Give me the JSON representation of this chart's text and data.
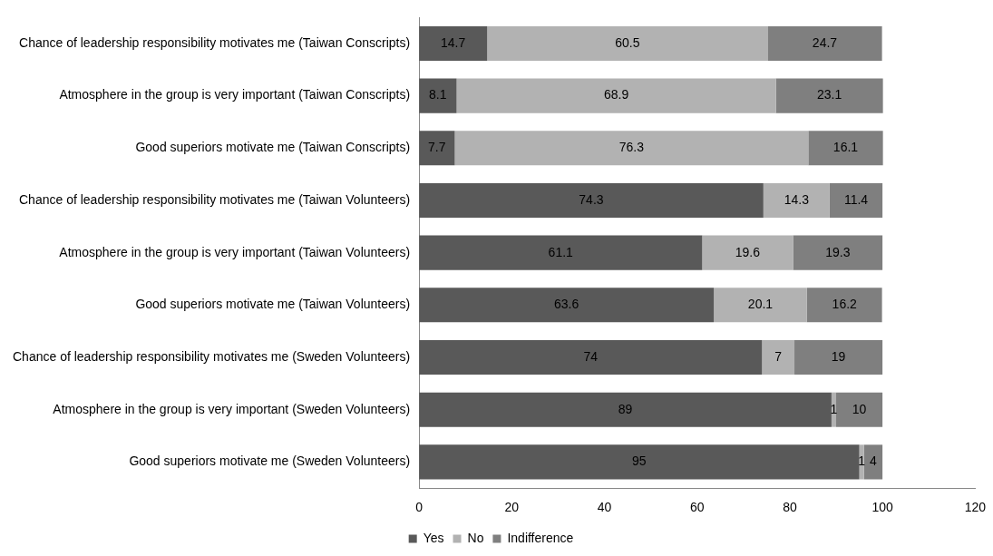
{
  "chart_data": {
    "type": "bar",
    "orientation": "horizontal",
    "stacked": true,
    "categories": [
      "Chance of leadership responsibility motivates me (Taiwan Conscripts)",
      "Atmosphere in the group is very important (Taiwan Conscripts)",
      "Good superiors motivate me (Taiwan Conscripts)",
      "Chance of leadership responsibility motivates me (Taiwan Volunteers)",
      "Atmosphere in the group is very important (Taiwan Volunteers)",
      "Good superiors motivate me (Taiwan Volunteers)",
      "Chance of leadership responsibility motivates me (Sweden Volunteers)",
      "Atmosphere in the group is very important (Sweden Volunteers)",
      "Good superiors motivate me (Sweden Volunteers)"
    ],
    "series": [
      {
        "name": "Yes",
        "color": "#595959",
        "values": [
          14.7,
          8.1,
          7.7,
          74.3,
          61.1,
          63.6,
          74,
          89,
          95
        ]
      },
      {
        "name": "No",
        "color": "#b2b2b2",
        "values": [
          60.5,
          68.9,
          76.3,
          14.3,
          19.6,
          20.1,
          7,
          1,
          1
        ]
      },
      {
        "name": "Indifference",
        "color": "#7f7f7f",
        "values": [
          24.7,
          23.1,
          16.1,
          11.4,
          19.3,
          16.2,
          19,
          10,
          4
        ]
      }
    ],
    "xlim": [
      0,
      120
    ],
    "xticks": [
      0,
      20,
      40,
      60,
      80,
      100,
      120
    ],
    "data_labels": true,
    "legend": "bottom",
    "grid": false
  }
}
